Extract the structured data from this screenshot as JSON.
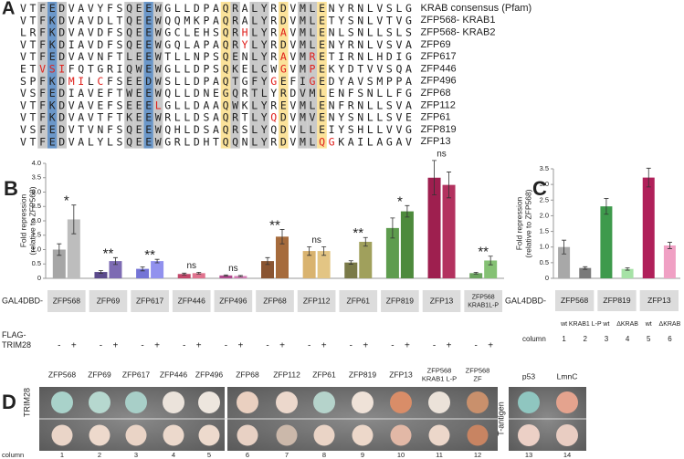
{
  "panel_a": {
    "letter": "A",
    "rows": [
      {
        "sequence": "VTFEDVAVYFSQEEWGLLDPAQRALYRDVMLENYRNLVSLG",
        "label": "KRAB consensus (Pfam)",
        "red": []
      },
      {
        "sequence": "VTFKDVAVDLTQEEWQQMKPAQRALYRDVMLETYSNLVTVG",
        "label": "ZFP568- KRAB1",
        "red": []
      },
      {
        "sequence": "LRFKDVAVDFSQEEWGCLEHSQRHLYRAVMLENLSNLLSLS",
        "label": "ZFP568- KRAB2",
        "red": [
          23,
          27
        ]
      },
      {
        "sequence": "VTFKDIAVDFSQEEWGQLAPAQRYLYRDVMLENYRNLVSVA",
        "label": "ZFP69",
        "red": [
          23
        ]
      },
      {
        "sequence": "VTFEDVAVNFTLEEWTLLNPSQENLYRAVMRETIRNLHDIG",
        "label": "ZFP617",
        "red": [
          27,
          30
        ]
      },
      {
        "sequence": "ETVSIFQTGRIQWEWGLLDPSQKELCWGVMPEKYDTVVSQA",
        "label": "ZFP446",
        "red": [
          2,
          3,
          4,
          27,
          30
        ]
      },
      {
        "sequence": "SPFKDMILCFSEEDWSLLDPAQTGFYGEFIGEDYAVSMPPA",
        "label": "ZFP496",
        "red": [
          5,
          6,
          8,
          26,
          30
        ]
      },
      {
        "sequence": "VSFEDIAVEFTWEEWQLLDNEGQRTLYRDVMLENFSNLLFG",
        "label": "ZFP68",
        "red": []
      },
      {
        "sequence": "VTFKDVAVEFSEEELGLLDAAQWKLYREVMLENFRNLLSVA",
        "label": "ZFP112",
        "red": [
          14
        ]
      },
      {
        "sequence": "VTFKDVAVTFTKEEWRLLDSAQRTLYQDVMVENYSNLLSVE",
        "label": "ZFP61",
        "red": [
          26
        ]
      },
      {
        "sequence": "VSFEDVTVNFSQEEWQHLDSAQRSLYQDVLLEIYSHLLVVG",
        "label": "ZFP819",
        "red": []
      },
      {
        "sequence": "VTFEDVALYLSQEEWGRLDHTQQNLYRDVMLQGKAILAGAV",
        "label": "ZFP13",
        "red": [
          31,
          32
        ]
      }
    ]
  },
  "chart_data": [
    {
      "type": "bar",
      "letter": "B",
      "ylabel": [
        "Fold repression",
        "(relative to ZFP568)"
      ],
      "categories": [
        "ZFP568",
        "ZFP69",
        "ZFP617",
        "ZFP446",
        "ZFP496",
        "ZFP68",
        "ZFP112",
        "ZFP61",
        "ZFP819",
        "ZFP13",
        [
          "ZFP568",
          "KRAB1L-P"
        ]
      ],
      "group_row_label": "GAL4DBD-",
      "series_row_label": [
        "FLAG-",
        "TRIM28"
      ],
      "series": [
        {
          "name": "-",
          "values": [
            1.0,
            0.22,
            0.33,
            0.15,
            0.1,
            0.6,
            0.95,
            0.55,
            1.75,
            3.5,
            0.18
          ],
          "errors": [
            0.2,
            0.05,
            0.07,
            0.03,
            0.02,
            0.12,
            0.15,
            0.06,
            0.35,
            0.6,
            0.03
          ],
          "colors": [
            "#a6a6a6",
            "#5b4a8c",
            "#7474d6",
            "#c2476a",
            "#b14c8f",
            "#8a5532",
            "#d9b36f",
            "#7a7a48",
            "#5e9c4e",
            "#9e1f4f",
            "#6ba45f"
          ]
        },
        {
          "name": "+",
          "values": [
            2.05,
            0.6,
            0.6,
            0.18,
            0.08,
            1.45,
            0.95,
            1.27,
            2.33,
            3.25,
            0.62
          ],
          "errors": [
            0.5,
            0.12,
            0.06,
            0.03,
            0.02,
            0.25,
            0.15,
            0.15,
            0.2,
            0.45,
            0.15
          ],
          "colors": [
            "#bdbdbd",
            "#7d6bb3",
            "#9191ee",
            "#e0738e",
            "#d37cb4",
            "#a66b3c",
            "#e3c584",
            "#a0a05c",
            "#4d8a3c",
            "#b3325f",
            "#85c174"
          ]
        }
      ],
      "significance": [
        "*",
        "**",
        "**",
        "ns",
        "ns",
        "**",
        "ns",
        "**",
        "*",
        "ns",
        "**"
      ],
      "ylim": [
        0,
        4
      ],
      "yticks": [
        0,
        0.5,
        {
          "value": 1,
          "label": "1.0"
        },
        1.5,
        {
          "value": 2,
          "label": "2.0"
        },
        2.5,
        {
          "value": 3,
          "label": "3.0"
        },
        3.5,
        {
          "value": 4,
          "label": "4.0"
        }
      ]
    },
    {
      "type": "bar",
      "letter": "C",
      "ylabel": [
        "Fold repression",
        "(relative to ZFP568)"
      ],
      "group_row_label": "GAL4DBD-",
      "groups": [
        "ZFP568",
        "ZFP819",
        "ZFP13"
      ],
      "categories": [
        "wt",
        "KRAB1 L-P",
        "wt",
        "ΔKRAB",
        "wt",
        "ΔKRAB"
      ],
      "values": [
        1.0,
        0.33,
        2.3,
        0.3,
        3.22,
        1.05
      ],
      "errors": [
        0.22,
        0.04,
        0.25,
        0.04,
        0.3,
        0.1
      ],
      "colors": [
        "#a8a8a8",
        "#7a7a7a",
        "#3e9a4c",
        "#a6e2a6",
        "#b0205a",
        "#f0a0c4"
      ],
      "column_label": "column",
      "columns": [
        1,
        2,
        3,
        4,
        5,
        6
      ],
      "ylim": [
        0,
        3.5
      ],
      "yticks": [
        0,
        0.5,
        {
          "value": 1,
          "label": "1.0"
        },
        1.5,
        {
          "value": 2,
          "label": "2.0"
        },
        2.5,
        {
          "value": 3,
          "label": "3.0"
        },
        3.5
      ]
    }
  ],
  "panel_d": {
    "letter": "D",
    "row_label": "TRIM28",
    "columns": [
      "ZFP568",
      "ZFP69",
      "ZFP617",
      "ZFP446",
      "ZFP496",
      "ZFP68",
      "ZFP112",
      "ZFP61",
      "ZFP819",
      "ZFP13",
      [
        "ZFP568",
        "KRAB1 L-P"
      ],
      [
        "ZFP568",
        "ZF"
      ]
    ],
    "control_row_label": "T-antigen",
    "control_columns": [
      "p53",
      "LmnC"
    ],
    "column_label": "column",
    "column_numbers": [
      1,
      2,
      3,
      4,
      5,
      6,
      7,
      8,
      9,
      10,
      11,
      12,
      13,
      14
    ]
  }
}
